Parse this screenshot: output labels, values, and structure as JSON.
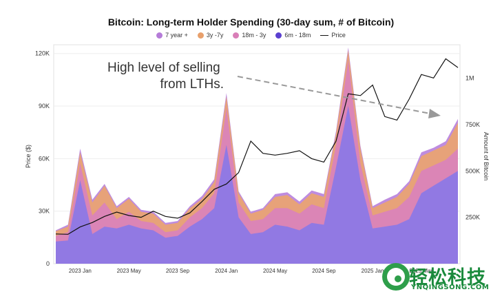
{
  "chart_data": {
    "type": "area",
    "title": "Bitcoin: Long-term Holder Spending (30-day sum, # of Bitcoin)",
    "xlabel": "",
    "ylabel": "Price ($)",
    "y2label": "Amount of Bitcoin",
    "x_ticks": [
      "2023 Jan",
      "2023 May",
      "2023 Sep",
      "2024 Jan",
      "2024 May",
      "2024 Sep",
      "2025 Jan",
      "2025 May"
    ],
    "y_ticks": [
      "0",
      "30K",
      "60K",
      "90K",
      "120K"
    ],
    "y2_ticks": [
      "250K",
      "500K",
      "750K",
      "1M"
    ],
    "ylim": [
      0,
      125000
    ],
    "y2lim": [
      0,
      1180000
    ],
    "annotation": "High level of selling from LTHs.",
    "grid": true,
    "legend_position": "top",
    "legend": [
      {
        "label": "7 year +",
        "color": "#b57cd8"
      },
      {
        "label": "3y -7y",
        "color": "#e8a06c"
      },
      {
        "label": "18m - 3y",
        "color": "#d97fb8"
      },
      {
        "label": "6m - 18m",
        "color": "#5b40d0"
      },
      {
        "label": "Price",
        "color": "#111111"
      }
    ],
    "x": [
      "2022-11",
      "2022-12",
      "2023-01",
      "2023-02",
      "2023-03",
      "2023-04",
      "2023-05",
      "2023-06",
      "2023-07",
      "2023-08",
      "2023-09",
      "2023-10",
      "2023-11",
      "2023-12",
      "2024-01",
      "2024-02",
      "2024-03",
      "2024-04",
      "2024-05",
      "2024-06",
      "2024-07",
      "2024-08",
      "2024-09",
      "2024-10",
      "2024-11",
      "2024-12",
      "2025-01",
      "2025-02",
      "2025-03",
      "2025-04",
      "2025-05",
      "2025-06",
      "2025-07",
      "2025-08"
    ],
    "series": [
      {
        "name": "6m - 18m",
        "values": [
          120000,
          125000,
          450000,
          160000,
          200000,
          190000,
          210000,
          190000,
          180000,
          140000,
          150000,
          200000,
          240000,
          300000,
          640000,
          250000,
          160000,
          170000,
          210000,
          200000,
          180000,
          220000,
          210000,
          520000,
          850000,
          450000,
          190000,
          200000,
          210000,
          240000,
          380000,
          420000,
          460000,
          500000
        ]
      },
      {
        "name": "18m - 3y",
        "values": [
          150000,
          170000,
          540000,
          260000,
          330000,
          240000,
          280000,
          230000,
          220000,
          170000,
          180000,
          250000,
          300000,
          380000,
          840000,
          330000,
          230000,
          240000,
          300000,
          300000,
          270000,
          320000,
          300000,
          640000,
          1100000,
          540000,
          260000,
          280000,
          300000,
          360000,
          500000,
          530000,
          560000,
          620000
        ]
      },
      {
        "name": "3y -7y",
        "values": [
          175000,
          200000,
          600000,
          330000,
          420000,
          300000,
          350000,
          280000,
          270000,
          210000,
          220000,
          300000,
          350000,
          440000,
          900000,
          380000,
          270000,
          290000,
          360000,
          370000,
          320000,
          380000,
          360000,
          700000,
          1150000,
          620000,
          300000,
          330000,
          360000,
          430000,
          580000,
          610000,
          640000,
          760000
        ]
      },
      {
        "name": "7 year +",
        "values": [
          180000,
          210000,
          620000,
          345000,
          430000,
          310000,
          360000,
          290000,
          280000,
          220000,
          230000,
          310000,
          365000,
          455000,
          920000,
          390000,
          280000,
          300000,
          375000,
          385000,
          335000,
          395000,
          375000,
          715000,
          1165000,
          635000,
          310000,
          345000,
          375000,
          445000,
          600000,
          625000,
          660000,
          780000
        ]
      },
      {
        "name": "Price",
        "values": [
          17000,
          16800,
          21000,
          23500,
          27000,
          29500,
          27500,
          26500,
          30000,
          27000,
          26000,
          29000,
          35500,
          42500,
          45500,
          52000,
          70000,
          63000,
          62000,
          63000,
          64500,
          60000,
          58000,
          70000,
          97000,
          96000,
          102000,
          84000,
          82000,
          94000,
          108000,
          106000,
          117000,
          112000
        ]
      }
    ]
  }
}
